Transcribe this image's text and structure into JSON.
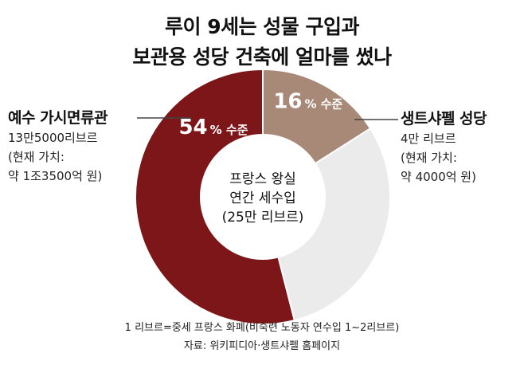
{
  "title_lines": [
    "루이 9세는 성물 구입과",
    "보관용 성당 건축에 얼마를 썼나"
  ],
  "chart_data": {
    "type": "pie",
    "variant": "donut",
    "center_label": [
      "프랑스 왕실",
      "연간 세수입",
      "(25만 리브르)"
    ],
    "slices": [
      {
        "name": "생트샤펠 성당",
        "value": 16,
        "label": "16% 수준",
        "color": "#a88877",
        "label_color": "#ffffff"
      },
      {
        "name": "remainder",
        "value": 30,
        "label": "",
        "color": "#ebebeb",
        "label_color": ""
      },
      {
        "name": "예수 가시면류관",
        "value": 54,
        "label": "54% 수준",
        "color": "#7d1618",
        "label_color": "#ffffff"
      }
    ]
  },
  "left_annotation": {
    "title": "예수 가시면류관",
    "lines": [
      "13만5000리브르",
      "(현재 가치:",
      "약 1조3500억 원)"
    ]
  },
  "right_annotation": {
    "title": "생트샤펠 성당",
    "lines": [
      "4만 리브르",
      "(현재 가치:",
      "약 4000억 원)"
    ]
  },
  "footnote": "1 리브르=중세 프랑스 화폐(비숙련 노동자 연수입 1~2리브르)",
  "source": "자료: 위키피디아·생트샤펠 홈페이지"
}
